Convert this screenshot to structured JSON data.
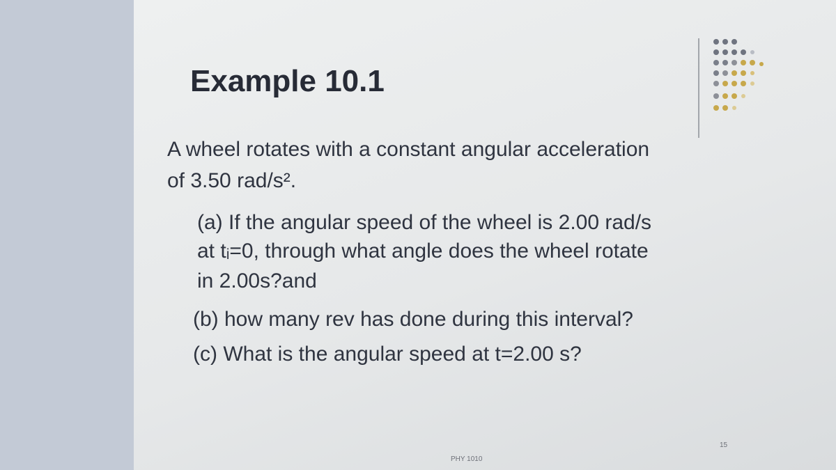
{
  "slide": {
    "title": "Example 10.1",
    "intro": {
      "lines": [
        "A wheel rotates with a constant angular acceleration",
        "of 3.50 rad/s²."
      ]
    },
    "parts": [
      {
        "lines": [
          "(a) If the angular speed of the wheel is 2.00 rad/s",
          "at tᵢ=0, through what angle does the wheel rotate",
          "in 2.00s?and"
        ]
      },
      {
        "lines": [
          "(b) how many rev has done during this interval?"
        ]
      },
      {
        "lines": [
          "(c) What is the angular speed at t=2.00 s?"
        ]
      }
    ],
    "footer": "PHY 1010",
    "page_number": "15"
  }
}
